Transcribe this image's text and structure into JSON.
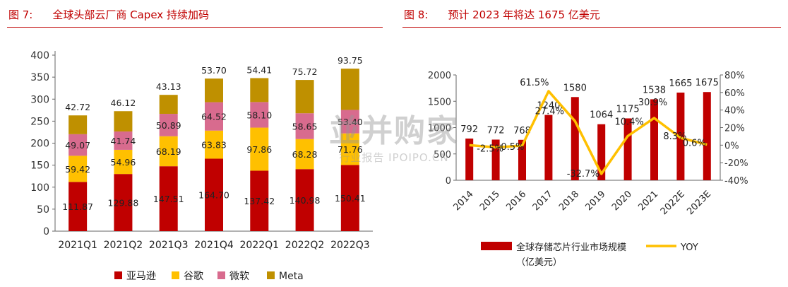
{
  "left_figure": {
    "number": "图 7:",
    "caption": "全球头部云厂商 Capex 持续加码"
  },
  "right_figure": {
    "number": "图 8:",
    "caption": "预计 2023 年将达 1675 亿美元"
  },
  "watermark": {
    "main": "並并购家",
    "sub": "行业报告 IPOIPO.CN"
  },
  "colors": {
    "red": "#c00000",
    "amazon": "#c00000",
    "google": "#ffc000",
    "microsoft": "#d86b8e",
    "meta": "#bf9000",
    "yoy": "#ffc000"
  },
  "chart_data": [
    {
      "type": "bar",
      "stacked": true,
      "categories": [
        "2021Q1",
        "2021Q2",
        "2021Q3",
        "2021Q4",
        "2022Q1",
        "2022Q2",
        "2022Q3"
      ],
      "series": [
        {
          "name": "亚马逊",
          "values": [
            111.87,
            129.88,
            147.51,
            164.7,
            137.42,
            140.98,
            150.41
          ],
          "labels": [
            "111.87",
            "129.88",
            "147.51",
            "164.70",
            "137.42",
            "140.98",
            "150.41"
          ]
        },
        {
          "name": "谷歌",
          "values": [
            59.42,
            54.96,
            68.19,
            63.83,
            97.86,
            68.28,
            71.76
          ],
          "labels": [
            "59.42",
            "54.96",
            "68.19",
            "63.83",
            "97.86",
            "68.28",
            "71.76"
          ]
        },
        {
          "name": "微软",
          "values": [
            49.07,
            41.74,
            50.89,
            64.52,
            58.1,
            58.65,
            53.4
          ],
          "labels": [
            "49.07",
            "41.74",
            "50.89",
            "64.52",
            "58.10",
            "58.65",
            "53.40"
          ]
        },
        {
          "name": "Meta",
          "values": [
            42.72,
            46.12,
            43.13,
            53.7,
            54.41,
            75.72,
            93.75
          ],
          "labels": [
            "42.72",
            "46.12",
            "43.13",
            "53.70",
            "54.41",
            "75.72",
            "93.75"
          ]
        }
      ],
      "yticks": [
        "0",
        "50",
        "100",
        "150",
        "200",
        "250",
        "300",
        "350",
        "400"
      ],
      "ylim": [
        0,
        400
      ],
      "legend_position": "bottom",
      "grid": false
    },
    {
      "type": "bar+line",
      "categories": [
        "2014",
        "2015",
        "2016",
        "2017",
        "2018",
        "2019",
        "2020",
        "2021",
        "2022E",
        "2023E"
      ],
      "series": [
        {
          "name": "全球存储芯片行业市场规模（亿美元）",
          "legend_line1": "全球存储芯片行业市场规模",
          "legend_line2": "（亿美元）",
          "axis": "left",
          "values": [
            792,
            772,
            768,
            1240,
            1580,
            1064,
            1175,
            1538,
            1665,
            1675
          ],
          "labels": [
            "792",
            "772",
            "768",
            "1240",
            "1580",
            "1064",
            "1175",
            "1538",
            "1665",
            "1675"
          ]
        },
        {
          "name": "YOY",
          "axis": "right",
          "values": [
            0,
            -2.5,
            -0.5,
            61.5,
            27.4,
            -32.7,
            10.4,
            30.9,
            8.3,
            0.6
          ],
          "labels": [
            "",
            "-2.5%",
            "-0.5%",
            "61.5%",
            "27.4%",
            "-32.7%",
            "10.4%",
            "30.9%",
            "8.3%",
            "0.6%"
          ]
        }
      ],
      "yticks_left": [
        "0",
        "500",
        "1000",
        "1500",
        "2000"
      ],
      "ylim_left": [
        0,
        2000
      ],
      "yticks_right": [
        "-40%",
        "-20%",
        "0%",
        "20%",
        "40%",
        "60%",
        "80%"
      ],
      "ylim_right": [
        -40,
        80
      ],
      "legend_position": "bottom",
      "grid": false
    }
  ]
}
